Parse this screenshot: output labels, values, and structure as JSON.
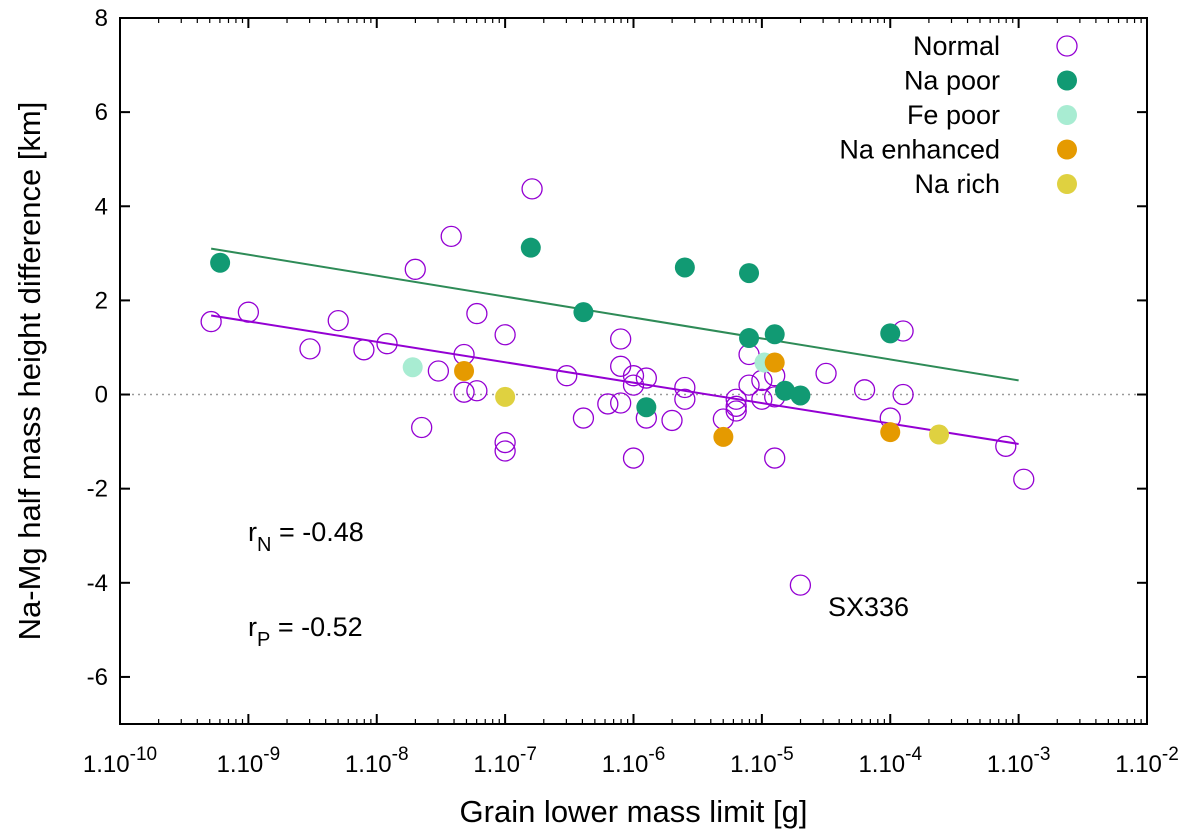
{
  "chart_data": {
    "type": "scatter",
    "title": "",
    "xlabel": "Grain lower mass limit [g]",
    "ylabel": "Na-Mg half mass height difference [km]",
    "xscale": "log",
    "xlim_exp": [
      -10,
      -2
    ],
    "ylim": [
      -7,
      8
    ],
    "x_ticks": [
      {
        "exp": -10,
        "mant": "1.10",
        "sup": "-10"
      },
      {
        "exp": -9,
        "mant": "1.10",
        "sup": "-9"
      },
      {
        "exp": -8,
        "mant": "1.10",
        "sup": "-8"
      },
      {
        "exp": -7,
        "mant": "1.10",
        "sup": "-7"
      },
      {
        "exp": -6,
        "mant": "1.10",
        "sup": "-6"
      },
      {
        "exp": -5,
        "mant": "1.10",
        "sup": "-5"
      },
      {
        "exp": -4,
        "mant": "1.10",
        "sup": "-4"
      },
      {
        "exp": -3,
        "mant": "1.10",
        "sup": "-3"
      },
      {
        "exp": -2,
        "mant": "1.10",
        "sup": "-2"
      }
    ],
    "y_ticks": [
      -6,
      -4,
      -2,
      0,
      2,
      4,
      6,
      8
    ],
    "legend_position": "top-right",
    "series": [
      {
        "name": "Normal",
        "marker": "open-circle",
        "color": "#9400d3",
        "points": [
          [
            -9.29,
            1.55
          ],
          [
            -9.0,
            1.75
          ],
          [
            -8.52,
            0.97
          ],
          [
            -8.3,
            1.57
          ],
          [
            -8.1,
            0.95
          ],
          [
            -7.92,
            1.08
          ],
          [
            -7.7,
            2.66
          ],
          [
            -7.65,
            -0.7
          ],
          [
            -7.52,
            0.5
          ],
          [
            -7.42,
            3.36
          ],
          [
            -7.32,
            0.85
          ],
          [
            -7.32,
            0.05
          ],
          [
            -7.22,
            1.72
          ],
          [
            -7.22,
            0.08
          ],
          [
            -7.0,
            1.27
          ],
          [
            -7.0,
            -1.02
          ],
          [
            -7.0,
            -1.2
          ],
          [
            -6.79,
            4.37
          ],
          [
            -6.52,
            0.4
          ],
          [
            -6.39,
            -0.5
          ],
          [
            -6.2,
            -0.2
          ],
          [
            -6.1,
            1.18
          ],
          [
            -6.1,
            0.6
          ],
          [
            -6.1,
            -0.18
          ],
          [
            -6.0,
            0.4
          ],
          [
            -6.0,
            0.2
          ],
          [
            -6.0,
            -1.35
          ],
          [
            -5.9,
            0.35
          ],
          [
            -5.9,
            -0.5
          ],
          [
            -5.7,
            -0.55
          ],
          [
            -5.6,
            0.15
          ],
          [
            -5.6,
            -0.1
          ],
          [
            -5.3,
            -0.52
          ],
          [
            -5.2,
            -0.1
          ],
          [
            -5.2,
            -0.25
          ],
          [
            -5.2,
            -0.35
          ],
          [
            -5.1,
            0.85
          ],
          [
            -5.1,
            0.2
          ],
          [
            -5.0,
            0.3
          ],
          [
            -5.0,
            -0.1
          ],
          [
            -4.9,
            0.4
          ],
          [
            -4.9,
            -0.05
          ],
          [
            -4.9,
            -1.35
          ],
          [
            -4.7,
            -4.05
          ],
          [
            -4.5,
            0.45
          ],
          [
            -4.2,
            0.1
          ],
          [
            -4.0,
            -0.5
          ],
          [
            -3.9,
            0.0
          ],
          [
            -3.9,
            1.35
          ],
          [
            -3.1,
            -1.1
          ],
          [
            -2.96,
            -1.8
          ]
        ]
      },
      {
        "name": "Na poor",
        "marker": "filled-circle",
        "color": "#119a73",
        "points": [
          [
            -9.22,
            2.8
          ],
          [
            -6.8,
            3.12
          ],
          [
            -6.39,
            1.75
          ],
          [
            -5.9,
            -0.27
          ],
          [
            -5.6,
            2.7
          ],
          [
            -5.1,
            2.58
          ],
          [
            -5.1,
            1.2
          ],
          [
            -4.9,
            1.28
          ],
          [
            -4.82,
            0.08
          ],
          [
            -4.7,
            -0.02
          ],
          [
            -4.0,
            1.3
          ]
        ]
      },
      {
        "name": "Fe poor",
        "marker": "filled-circle",
        "color": "#a8ecd2",
        "points": [
          [
            -7.72,
            0.58
          ],
          [
            -4.98,
            0.68
          ]
        ]
      },
      {
        "name": "Na enhanced",
        "marker": "filled-circle",
        "color": "#e59a00",
        "points": [
          [
            -7.32,
            0.5
          ],
          [
            -5.3,
            -0.9
          ],
          [
            -4.9,
            0.68
          ],
          [
            -4.0,
            -0.8
          ]
        ]
      },
      {
        "name": "Na rich",
        "marker": "filled-circle",
        "color": "#dfd140",
        "points": [
          [
            -7.0,
            -0.05
          ],
          [
            -3.62,
            -0.85
          ]
        ]
      }
    ],
    "fit_lines": [
      {
        "name": "Na poor fit",
        "color": "#2e8b57",
        "x": [
          -9.29,
          -3.0
        ],
        "y": [
          3.1,
          0.3
        ]
      },
      {
        "name": "Normal fit",
        "color": "#9400d3",
        "x": [
          -9.29,
          -3.0
        ],
        "y": [
          1.68,
          -1.05
        ]
      }
    ],
    "zero_line": {
      "y": 0,
      "style": "dotted"
    },
    "annotations": [
      {
        "id": "rN",
        "base": "r",
        "sub": "N",
        "text": " = -0.48"
      },
      {
        "id": "rP",
        "base": "r",
        "sub": "P",
        "text": " = -0.52"
      },
      {
        "id": "sx336",
        "text": "SX336"
      }
    ]
  }
}
